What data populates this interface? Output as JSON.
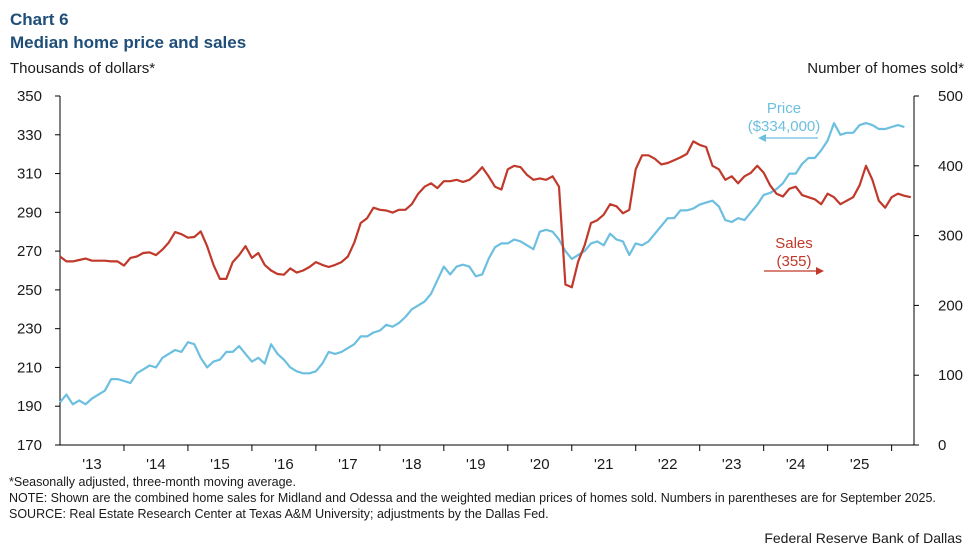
{
  "header": {
    "chart_number": "Chart 6",
    "title": "Median home price and sales",
    "left_axis_title": "Thousands of dollars*",
    "right_axis_title": "Number of homes sold*"
  },
  "notes": {
    "line1": "*Seasonally adjusted, three-month moving average.",
    "line2": "NOTE: Shown are the combined home sales for Midland and Odessa and the weighted median prices of homes sold. Numbers in parentheses are for September 2025.",
    "line3": "SOURCE: Real Estate Research Center at Texas A&M University; adjustments by the Dallas Fed."
  },
  "footer": {
    "credit": "Federal Reserve Bank of Dallas"
  },
  "colors": {
    "price": "#6dbfe0",
    "sales": "#c0392b",
    "axis": "#000000"
  },
  "chart_data": {
    "type": "line",
    "title": "Median home price and sales",
    "left_axis": {
      "label": "Thousands of dollars*",
      "range": [
        170,
        350
      ],
      "ticks": [
        170,
        190,
        210,
        230,
        250,
        270,
        290,
        310,
        330,
        350
      ]
    },
    "right_axis": {
      "label": "Number of homes sold*",
      "range": [
        0,
        500
      ],
      "ticks": [
        0,
        100,
        200,
        300,
        400,
        500
      ]
    },
    "x_axis": {
      "range": [
        2012.5,
        2025.85
      ],
      "tick_labels": [
        "'13",
        "'14",
        "'15",
        "'16",
        "'17",
        "'18",
        "'19",
        "'20",
        "'21",
        "'22",
        "'23",
        "'24",
        "'25"
      ],
      "tick_positions": [
        2013,
        2014,
        2015,
        2016,
        2017,
        2018,
        2019,
        2020,
        2021,
        2022,
        2023,
        2024,
        2025
      ]
    },
    "annotations": {
      "price_label": "Price",
      "price_value": "($334,000)",
      "sales_label": "Sales",
      "sales_value": "(355)"
    },
    "series": [
      {
        "name": "Price",
        "axis": "left",
        "points": [
          [
            2012.5,
            192
          ],
          [
            2012.6,
            196
          ],
          [
            2012.7,
            191
          ],
          [
            2012.8,
            193
          ],
          [
            2012.9,
            191
          ],
          [
            2013.0,
            194
          ],
          [
            2013.1,
            196
          ],
          [
            2013.2,
            198
          ],
          [
            2013.3,
            204
          ],
          [
            2013.4,
            204
          ],
          [
            2013.5,
            203
          ],
          [
            2013.6,
            202
          ],
          [
            2013.7,
            207
          ],
          [
            2013.8,
            209
          ],
          [
            2013.9,
            211
          ],
          [
            2014.0,
            210
          ],
          [
            2014.1,
            215
          ],
          [
            2014.2,
            217
          ],
          [
            2014.3,
            219
          ],
          [
            2014.4,
            218
          ],
          [
            2014.5,
            223
          ],
          [
            2014.6,
            222
          ],
          [
            2014.7,
            215
          ],
          [
            2014.8,
            210
          ],
          [
            2014.9,
            213
          ],
          [
            2015.0,
            214
          ],
          [
            2015.1,
            218
          ],
          [
            2015.2,
            218
          ],
          [
            2015.3,
            221
          ],
          [
            2015.4,
            217
          ],
          [
            2015.5,
            213
          ],
          [
            2015.6,
            215
          ],
          [
            2015.7,
            212
          ],
          [
            2015.8,
            222
          ],
          [
            2015.9,
            217
          ],
          [
            2016.0,
            214
          ],
          [
            2016.1,
            210
          ],
          [
            2016.2,
            208
          ],
          [
            2016.3,
            207
          ],
          [
            2016.4,
            207
          ],
          [
            2016.5,
            208
          ],
          [
            2016.6,
            212
          ],
          [
            2016.7,
            218
          ],
          [
            2016.8,
            217
          ],
          [
            2016.9,
            218
          ],
          [
            2017.0,
            220
          ],
          [
            2017.1,
            222
          ],
          [
            2017.2,
            226
          ],
          [
            2017.3,
            226
          ],
          [
            2017.4,
            228
          ],
          [
            2017.5,
            229
          ],
          [
            2017.6,
            232
          ],
          [
            2017.7,
            231
          ],
          [
            2017.8,
            233
          ],
          [
            2017.9,
            236
          ],
          [
            2018.0,
            240
          ],
          [
            2018.1,
            242
          ],
          [
            2018.2,
            244
          ],
          [
            2018.3,
            248
          ],
          [
            2018.4,
            255
          ],
          [
            2018.5,
            262
          ],
          [
            2018.6,
            258
          ],
          [
            2018.7,
            262
          ],
          [
            2018.8,
            263
          ],
          [
            2018.9,
            262
          ],
          [
            2019.0,
            257
          ],
          [
            2019.1,
            258
          ],
          [
            2019.2,
            266
          ],
          [
            2019.3,
            272
          ],
          [
            2019.4,
            274
          ],
          [
            2019.5,
            274
          ],
          [
            2019.6,
            276
          ],
          [
            2019.7,
            275
          ],
          [
            2019.8,
            273
          ],
          [
            2019.9,
            271
          ],
          [
            2020.0,
            280
          ],
          [
            2020.1,
            281
          ],
          [
            2020.2,
            280
          ],
          [
            2020.3,
            276
          ],
          [
            2020.4,
            270
          ],
          [
            2020.5,
            266
          ],
          [
            2020.6,
            268
          ],
          [
            2020.7,
            270
          ],
          [
            2020.8,
            274
          ],
          [
            2020.9,
            275
          ],
          [
            2021.0,
            273
          ],
          [
            2021.1,
            279
          ],
          [
            2021.2,
            276
          ],
          [
            2021.3,
            275
          ],
          [
            2021.4,
            268
          ],
          [
            2021.5,
            274
          ],
          [
            2021.6,
            273
          ],
          [
            2021.7,
            275
          ],
          [
            2021.8,
            279
          ],
          [
            2021.9,
            283
          ],
          [
            2022.0,
            287
          ],
          [
            2022.1,
            287
          ],
          [
            2022.2,
            291
          ],
          [
            2022.3,
            291
          ],
          [
            2022.4,
            292
          ],
          [
            2022.5,
            294
          ],
          [
            2022.6,
            295
          ],
          [
            2022.7,
            296
          ],
          [
            2022.8,
            293
          ],
          [
            2022.9,
            286
          ],
          [
            2023.0,
            285
          ],
          [
            2023.1,
            287
          ],
          [
            2023.2,
            286
          ],
          [
            2023.3,
            290
          ],
          [
            2023.4,
            294
          ],
          [
            2023.5,
            299
          ],
          [
            2023.6,
            300
          ],
          [
            2023.7,
            302
          ],
          [
            2023.8,
            305
          ],
          [
            2023.9,
            310
          ],
          [
            2024.0,
            310
          ],
          [
            2024.1,
            315
          ],
          [
            2024.2,
            318
          ],
          [
            2024.3,
            318
          ],
          [
            2024.4,
            322
          ],
          [
            2024.5,
            327
          ],
          [
            2024.6,
            336
          ],
          [
            2024.7,
            330
          ],
          [
            2024.8,
            331
          ],
          [
            2024.9,
            331
          ],
          [
            2025.0,
            335
          ],
          [
            2025.1,
            336
          ],
          [
            2025.2,
            335
          ],
          [
            2025.3,
            333
          ],
          [
            2025.4,
            333
          ],
          [
            2025.5,
            334
          ],
          [
            2025.6,
            335
          ],
          [
            2025.7,
            334
          ]
        ]
      },
      {
        "name": "Sales",
        "axis": "right",
        "points": [
          [
            2012.5,
            270
          ],
          [
            2012.6,
            263
          ],
          [
            2012.7,
            263
          ],
          [
            2012.8,
            265
          ],
          [
            2012.9,
            267
          ],
          [
            2013.0,
            264
          ],
          [
            2013.1,
            264
          ],
          [
            2013.2,
            264
          ],
          [
            2013.3,
            263
          ],
          [
            2013.4,
            263
          ],
          [
            2013.5,
            257
          ],
          [
            2013.6,
            268
          ],
          [
            2013.7,
            270
          ],
          [
            2013.8,
            275
          ],
          [
            2013.9,
            276
          ],
          [
            2014.0,
            272
          ],
          [
            2014.1,
            280
          ],
          [
            2014.2,
            290
          ],
          [
            2014.3,
            305
          ],
          [
            2014.4,
            302
          ],
          [
            2014.5,
            297
          ],
          [
            2014.6,
            298
          ],
          [
            2014.7,
            306
          ],
          [
            2014.8,
            285
          ],
          [
            2014.9,
            258
          ],
          [
            2015.0,
            238
          ],
          [
            2015.1,
            238
          ],
          [
            2015.2,
            262
          ],
          [
            2015.3,
            272
          ],
          [
            2015.4,
            285
          ],
          [
            2015.5,
            268
          ],
          [
            2015.6,
            275
          ],
          [
            2015.7,
            258
          ],
          [
            2015.8,
            250
          ],
          [
            2015.9,
            245
          ],
          [
            2016.0,
            244
          ],
          [
            2016.1,
            253
          ],
          [
            2016.2,
            247
          ],
          [
            2016.3,
            250
          ],
          [
            2016.4,
            255
          ],
          [
            2016.5,
            262
          ],
          [
            2016.6,
            258
          ],
          [
            2016.7,
            255
          ],
          [
            2016.8,
            258
          ],
          [
            2016.9,
            262
          ],
          [
            2017.0,
            270
          ],
          [
            2017.1,
            290
          ],
          [
            2017.2,
            318
          ],
          [
            2017.3,
            325
          ],
          [
            2017.4,
            340
          ],
          [
            2017.5,
            337
          ],
          [
            2017.6,
            336
          ],
          [
            2017.7,
            333
          ],
          [
            2017.8,
            337
          ],
          [
            2017.9,
            337
          ],
          [
            2018.0,
            345
          ],
          [
            2018.1,
            360
          ],
          [
            2018.2,
            370
          ],
          [
            2018.3,
            375
          ],
          [
            2018.4,
            368
          ],
          [
            2018.5,
            378
          ],
          [
            2018.6,
            378
          ],
          [
            2018.7,
            380
          ],
          [
            2018.8,
            377
          ],
          [
            2018.9,
            380
          ],
          [
            2019.0,
            388
          ],
          [
            2019.1,
            398
          ],
          [
            2019.2,
            385
          ],
          [
            2019.3,
            370
          ],
          [
            2019.4,
            366
          ],
          [
            2019.5,
            395
          ],
          [
            2019.6,
            400
          ],
          [
            2019.7,
            398
          ],
          [
            2019.8,
            387
          ],
          [
            2019.9,
            380
          ],
          [
            2020.0,
            382
          ],
          [
            2020.1,
            380
          ],
          [
            2020.2,
            385
          ],
          [
            2020.3,
            370
          ],
          [
            2020.4,
            230
          ],
          [
            2020.5,
            226
          ],
          [
            2020.6,
            263
          ],
          [
            2020.7,
            286
          ],
          [
            2020.8,
            318
          ],
          [
            2020.9,
            322
          ],
          [
            2021.0,
            330
          ],
          [
            2021.1,
            345
          ],
          [
            2021.2,
            342
          ],
          [
            2021.3,
            332
          ],
          [
            2021.4,
            337
          ],
          [
            2021.5,
            395
          ],
          [
            2021.6,
            415
          ],
          [
            2021.7,
            415
          ],
          [
            2021.8,
            410
          ],
          [
            2021.9,
            402
          ],
          [
            2022.0,
            404
          ],
          [
            2022.1,
            408
          ],
          [
            2022.2,
            412
          ],
          [
            2022.3,
            417
          ],
          [
            2022.4,
            435
          ],
          [
            2022.5,
            430
          ],
          [
            2022.6,
            427
          ],
          [
            2022.7,
            400
          ],
          [
            2022.8,
            395
          ],
          [
            2022.9,
            380
          ],
          [
            2023.0,
            385
          ],
          [
            2023.1,
            375
          ],
          [
            2023.2,
            385
          ],
          [
            2023.3,
            390
          ],
          [
            2023.4,
            400
          ],
          [
            2023.5,
            390
          ],
          [
            2023.6,
            372
          ],
          [
            2023.7,
            360
          ],
          [
            2023.8,
            356
          ],
          [
            2023.9,
            367
          ],
          [
            2024.0,
            370
          ],
          [
            2024.1,
            358
          ],
          [
            2024.2,
            355
          ],
          [
            2024.3,
            352
          ],
          [
            2024.4,
            345
          ],
          [
            2024.5,
            360
          ],
          [
            2024.6,
            355
          ],
          [
            2024.7,
            345
          ],
          [
            2024.8,
            350
          ],
          [
            2024.9,
            355
          ],
          [
            2025.0,
            372
          ],
          [
            2025.1,
            400
          ],
          [
            2025.2,
            380
          ],
          [
            2025.3,
            350
          ],
          [
            2025.4,
            340
          ],
          [
            2025.5,
            355
          ],
          [
            2025.6,
            360
          ],
          [
            2025.7,
            357
          ],
          [
            2025.8,
            355
          ]
        ]
      }
    ]
  }
}
